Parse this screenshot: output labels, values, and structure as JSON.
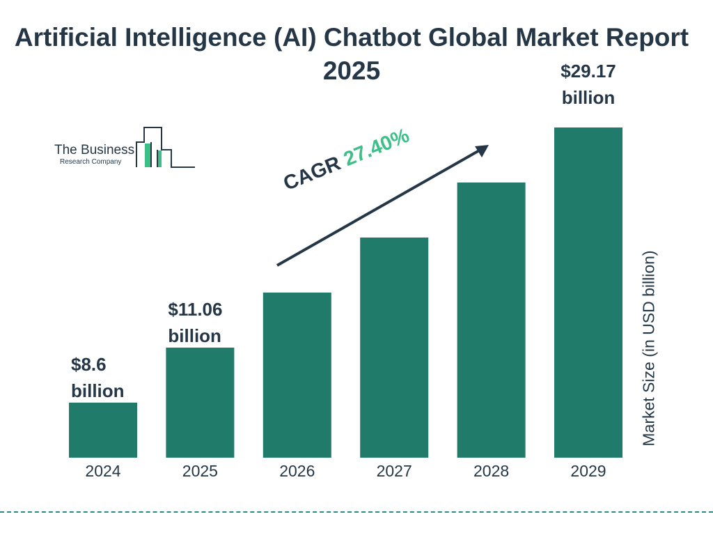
{
  "title": "Artificial Intelligence (AI) Chatbot Global Market Report 2025",
  "logo": {
    "line1": "The Business",
    "line2": "Research Company"
  },
  "colors": {
    "bar": "#217b6b",
    "text": "#253746",
    "accent": "#3dbf8a",
    "dash": "#2a8a86"
  },
  "cagr": {
    "label": "CAGR",
    "value": "27.40%"
  },
  "chart_data": {
    "type": "bar",
    "categories": [
      "2024",
      "2025",
      "2026",
      "2027",
      "2028",
      "2029"
    ],
    "values": [
      8.6,
      11.06,
      null,
      null,
      null,
      29.17
    ],
    "data_labels": [
      {
        "amount": "$8.6",
        "unit": "billion"
      },
      {
        "amount": "$11.06",
        "unit": "billion"
      },
      null,
      null,
      null,
      {
        "amount": "$29.17",
        "unit": "billion"
      }
    ],
    "ylabel": "Market Size (in USD billion)",
    "xlabel": "",
    "grid": false
  }
}
